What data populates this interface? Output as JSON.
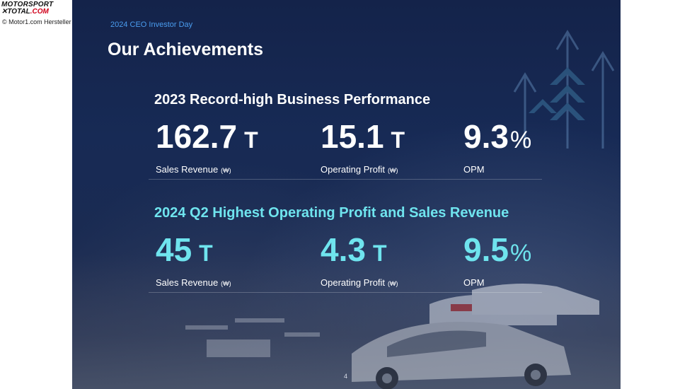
{
  "watermark": {
    "logo_line1": "MOTORSPORT",
    "logo_line2_a": "✕TOTAL",
    "logo_line2_b": ".COM",
    "credit": "© Motor1.com Hersteller"
  },
  "slide": {
    "eyebrow": "2024 CEO Investor Day",
    "title": "Our Achievements",
    "page_number": "4",
    "sections": [
      {
        "heading": "2023 Record-high Business Performance",
        "metrics": [
          {
            "value": "162.7",
            "unit": "T",
            "label": "Sales Revenue",
            "currency": "(₩)"
          },
          {
            "value": "15.1",
            "unit": "T",
            "label": "Operating Profit",
            "currency": "(₩)"
          },
          {
            "value": "9.3",
            "unit": "%",
            "label": "OPM",
            "currency": ""
          }
        ]
      },
      {
        "heading": "2024 Q2 Highest Operating Profit and Sales Revenue",
        "metrics": [
          {
            "value": "45",
            "unit": "T",
            "label": "Sales Revenue",
            "currency": "(₩)"
          },
          {
            "value": "4.3",
            "unit": "T",
            "label": "Operating Profit",
            "currency": "(₩)"
          },
          {
            "value": "9.5",
            "unit": "%",
            "label": "OPM",
            "currency": ""
          }
        ]
      }
    ]
  },
  "colors": {
    "background": "#172a55",
    "accent_cyan": "#6fe4ee",
    "eyebrow_blue": "#4a9df0",
    "text": "#ffffff"
  }
}
